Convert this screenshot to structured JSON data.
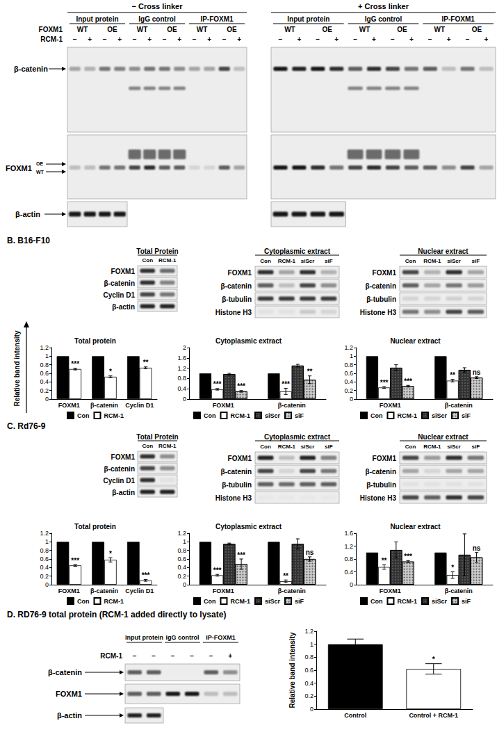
{
  "y_label": "Relative band intensity",
  "panel_a": {
    "row_labels": [
      "FOXM1",
      "RCM-1"
    ],
    "sections": [
      {
        "title": "− Cross linker",
        "groups": [
          {
            "name": "Input protein",
            "rows": [
              [
                "WT",
                "OE"
              ],
              [
                "−",
                "+",
                "−",
                "+"
              ]
            ]
          },
          {
            "name": "IgG control",
            "rows": [
              [
                "WT",
                "OE"
              ],
              [
                "−",
                "+",
                "−",
                "+"
              ]
            ]
          },
          {
            "name": "IP-FOXM1",
            "rows": [
              [
                "WT",
                "OE"
              ],
              [
                "−",
                "+",
                "−",
                "+"
              ]
            ]
          }
        ]
      },
      {
        "title": "+ Cross linker",
        "groups": [
          {
            "name": "Input protein",
            "rows": [
              [
                "WT",
                "OE"
              ],
              [
                "−",
                "+",
                "−",
                "+"
              ]
            ]
          },
          {
            "name": "IgG control",
            "rows": [
              [
                "WT",
                "OE"
              ],
              [
                "−",
                "+",
                "−",
                "+"
              ]
            ]
          },
          {
            "name": "IP-FOXM1",
            "rows": [
              [
                "WT",
                "OE"
              ],
              [
                "−",
                "+",
                "−",
                "+"
              ]
            ]
          }
        ]
      }
    ],
    "blots": [
      {
        "label": "β-catenin"
      },
      {
        "label": "FOXM1",
        "marks": [
          "OE",
          "WT"
        ]
      },
      {
        "label": "β-actin"
      }
    ]
  },
  "panel_b": {
    "title": "B. B16-F10",
    "blots": [
      {
        "title": "Total Protein",
        "lanes": [
          "Con",
          "RCM-1"
        ],
        "rows": [
          "FOXM1",
          "β-catenin",
          "Cyclin D1",
          "β-actin"
        ]
      },
      {
        "title": "Cytoplasmic extract",
        "lanes": [
          "Con",
          "RCM-1",
          "siScr",
          "siF"
        ],
        "rows": [
          "FOXM1",
          "β-catenin",
          "β-tubulin",
          "Histone H3"
        ]
      },
      {
        "title": "Nuclear extract",
        "lanes": [
          "Con",
          "RCM-1",
          "siScr",
          "siF"
        ],
        "rows": [
          "FOXM1",
          "β-catenin",
          "β-tubulin",
          "Histone H3"
        ]
      }
    ]
  },
  "panel_c": {
    "title": "C. Rd76-9",
    "blots": [
      {
        "title": "Total Protein",
        "lanes": [
          "Con",
          "RCM-1"
        ],
        "rows": [
          "FOXM1",
          "β-catenin",
          "Cyclin D1",
          "β-actin"
        ]
      },
      {
        "title": "Cytoplasmic extract",
        "lanes": [
          "Con",
          "RCM-1",
          "siScr",
          "siF"
        ],
        "rows": [
          "FOXM1",
          "β-catenin",
          "β-tubulin",
          "Histone H3"
        ]
      },
      {
        "title": "Nuclear extract",
        "lanes": [
          "Con",
          "RCM-1",
          "siScr",
          "siF"
        ],
        "rows": [
          "FOXM1",
          "β-catenin",
          "β-tubulin",
          "Histone H3"
        ]
      }
    ]
  },
  "panel_d": {
    "title": "D. RD76-9 total protein (RCM-1 added directly to lysate)",
    "row_label": "RCM-1",
    "groups": [
      {
        "name": "Input protein",
        "lanes": [
          "−",
          "−"
        ]
      },
      {
        "name": "IgG control",
        "lanes": [
          "−",
          "−"
        ]
      },
      {
        "name": "IP-FOXM1",
        "lanes": [
          "−",
          "+"
        ]
      }
    ],
    "blots": [
      {
        "label": "β-catenin"
      },
      {
        "label": "FOXM1"
      },
      {
        "label": "β-actin"
      }
    ]
  },
  "chart_data": [
    {
      "type": "bar",
      "title": "Total protein",
      "categories": [
        "FOXM1",
        "β-catenin",
        "Cyclin D1"
      ],
      "series": [
        {
          "name": "Con",
          "color": "#000000",
          "values": [
            1,
            1,
            1
          ],
          "errors": [
            0,
            0,
            0
          ]
        },
        {
          "name": "RCM-1",
          "color": "#ffffff",
          "values": [
            0.7,
            0.52,
            0.73
          ],
          "errors": [
            0.02,
            0.02,
            0.02
          ],
          "annotations": [
            "***",
            "*",
            "**"
          ]
        }
      ],
      "ylim": [
        0,
        1.2
      ],
      "yticks": [
        0,
        0.2,
        0.4,
        0.6,
        0.8,
        1,
        1.2
      ],
      "legend": "bottom",
      "grid": false
    },
    {
      "type": "bar",
      "title": "Cytoplasmic extract",
      "categories": [
        "FOXM1",
        "β-catenin"
      ],
      "series": [
        {
          "name": "Con",
          "color": "#000000",
          "values": [
            1,
            1
          ],
          "errors": [
            0,
            0
          ]
        },
        {
          "name": "RCM-1",
          "color": "#ffffff",
          "values": [
            0.38,
            0.3
          ],
          "errors": [
            0.03,
            0.12
          ],
          "annotations": [
            "***",
            "***"
          ]
        },
        {
          "name": "siScr",
          "color": "#333333",
          "values": [
            0.97,
            1.3
          ],
          "errors": [
            0.03,
            0.05
          ]
        },
        {
          "name": "siF",
          "color": "#cccccc",
          "values": [
            0.3,
            0.75
          ],
          "errors": [
            0.03,
            0.15
          ],
          "annotations": [
            "***",
            "**"
          ]
        }
      ],
      "ylim": [
        0,
        2
      ],
      "yticks": [
        0,
        0.4,
        0.8,
        1.2,
        1.6,
        2
      ],
      "legend": "bottom",
      "grid": false
    },
    {
      "type": "bar",
      "title": "Nuclear extract",
      "categories": [
        "FOXM1",
        "β-catenin"
      ],
      "series": [
        {
          "name": "Con",
          "color": "#000000",
          "values": [
            1,
            1
          ],
          "errors": [
            0,
            0
          ]
        },
        {
          "name": "RCM-1",
          "color": "#ffffff",
          "values": [
            0.27,
            0.43
          ],
          "errors": [
            0.02,
            0.03
          ],
          "annotations": [
            "***",
            "**"
          ]
        },
        {
          "name": "siScr",
          "color": "#333333",
          "values": [
            0.73,
            0.68
          ],
          "errors": [
            0.07,
            0.05
          ]
        },
        {
          "name": "siF",
          "color": "#cccccc",
          "values": [
            0.3,
            0.5
          ],
          "errors": [
            0.02,
            0.02
          ],
          "annotations": [
            "***",
            "ns"
          ]
        }
      ],
      "ylim": [
        0,
        1.2
      ],
      "yticks": [
        0,
        0.2,
        0.4,
        0.6,
        0.8,
        1,
        1.2
      ],
      "legend": "bottom",
      "grid": false
    },
    {
      "type": "bar",
      "title": "Total protein",
      "categories": [
        "FOXM1",
        "β-catenin",
        "Cyclin D1"
      ],
      "series": [
        {
          "name": "Con",
          "color": "#000000",
          "values": [
            1,
            1,
            1
          ],
          "errors": [
            0,
            0,
            0
          ]
        },
        {
          "name": "RCM-1",
          "color": "#ffffff",
          "values": [
            0.45,
            0.58,
            0.1
          ],
          "errors": [
            0.02,
            0.05,
            0.02
          ],
          "annotations": [
            "***",
            "*",
            "***"
          ]
        }
      ],
      "ylim": [
        0,
        1.2
      ],
      "yticks": [
        0,
        0.2,
        0.4,
        0.6,
        0.8,
        1,
        1.2
      ],
      "legend": "bottom",
      "grid": false
    },
    {
      "type": "bar",
      "title": "Cytoplasmic extract",
      "categories": [
        "FOXM1",
        "β-catenin"
      ],
      "series": [
        {
          "name": "Con",
          "color": "#000000",
          "values": [
            1,
            1
          ],
          "errors": [
            0,
            0
          ]
        },
        {
          "name": "RCM-1",
          "color": "#ffffff",
          "values": [
            0.22,
            0.08
          ],
          "errors": [
            0.02,
            0.03
          ],
          "annotations": [
            "***",
            "**"
          ]
        },
        {
          "name": "siScr",
          "color": "#333333",
          "values": [
            0.95,
            0.95
          ],
          "errors": [
            0.02,
            0.12
          ]
        },
        {
          "name": "siF",
          "color": "#cccccc",
          "values": [
            0.48,
            0.6
          ],
          "errors": [
            0.12,
            0.05
          ],
          "annotations": [
            "***",
            "ns"
          ]
        }
      ],
      "ylim": [
        0,
        1.2
      ],
      "yticks": [
        0,
        0.2,
        0.4,
        0.6,
        0.8,
        1,
        1.2
      ],
      "legend": "bottom",
      "grid": false
    },
    {
      "type": "bar",
      "title": "Nuclear extract",
      "categories": [
        "FOXM1",
        "β-catenin"
      ],
      "series": [
        {
          "name": "Con",
          "color": "#000000",
          "values": [
            1,
            1
          ],
          "errors": [
            0,
            0
          ]
        },
        {
          "name": "RCM-1",
          "color": "#ffffff",
          "values": [
            0.55,
            0.3
          ],
          "errors": [
            0.07,
            0.1
          ],
          "annotations": [
            "**",
            "*"
          ]
        },
        {
          "name": "siScr",
          "color": "#333333",
          "values": [
            1.08,
            0.93
          ],
          "errors": [
            0.25,
            0.65
          ]
        },
        {
          "name": "siF",
          "color": "#cccccc",
          "values": [
            0.72,
            0.85
          ],
          "errors": [
            0.03,
            0.15
          ],
          "annotations": [
            "***",
            "ns"
          ]
        }
      ],
      "ylim": [
        0,
        1.6
      ],
      "yticks": [
        0,
        0.4,
        0.8,
        1.2,
        1.6
      ],
      "legend": "bottom",
      "grid": false
    },
    {
      "type": "bar",
      "categories": [
        "Control",
        "Control + RCM-1"
      ],
      "ylabel": "Relative band intensity",
      "series": [
        {
          "colors": [
            "#000000",
            "#ffffff"
          ],
          "values": [
            1,
            0.62
          ],
          "errors": [
            0.08,
            0.08
          ],
          "annotations": [
            null,
            "*"
          ]
        }
      ],
      "ylim": [
        0,
        1.2
      ],
      "yticks": [
        0,
        0.2,
        0.4,
        0.6,
        0.8,
        1,
        1.2
      ],
      "grid": false
    }
  ]
}
